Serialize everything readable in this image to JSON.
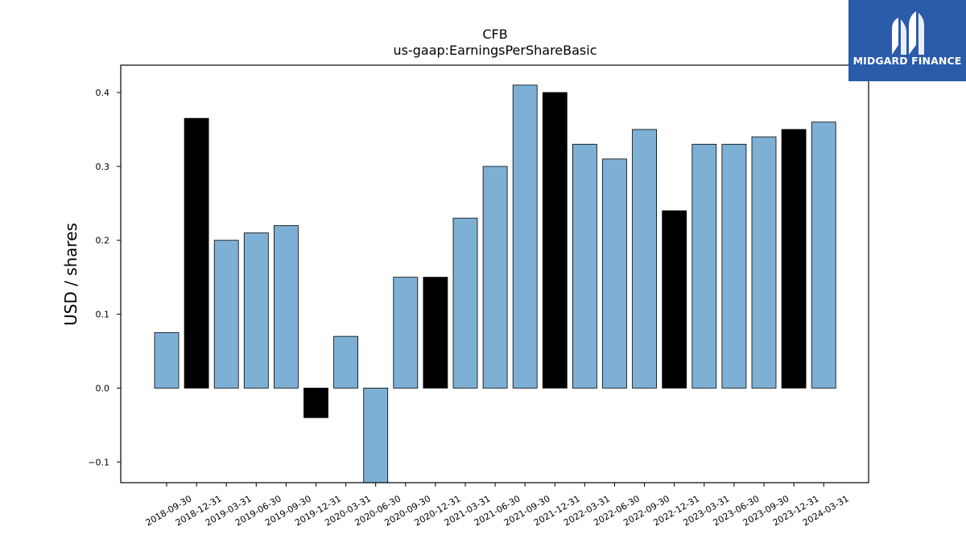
{
  "brand": {
    "logo_text": "MIDGARD FINANCE",
    "color": "#2a5caa"
  },
  "colors": {
    "bar": "#7eb0d5",
    "bar_alt": "#000000",
    "edge": "#000000"
  },
  "chart_data": {
    "type": "bar",
    "title": "CFB",
    "subtitle": "us-gaap:EarningsPerShareBasic",
    "xlabel": "",
    "ylabel": "USD / shares",
    "ylim": [
      -0.128,
      0.437
    ],
    "yticks": [
      -0.1,
      0.0,
      0.1,
      0.2,
      0.3,
      0.4
    ],
    "ytick_labels": [
      "−0.1",
      "0.0",
      "0.1",
      "0.2",
      "0.3",
      "0.4"
    ],
    "grid": false,
    "categories": [
      "2018-09-30",
      "2018-12-31",
      "2019-03-31",
      "2019-06-30",
      "2019-09-30",
      "2019-12-31",
      "2020-03-31",
      "2020-06-30",
      "2020-09-30",
      "2020-12-31",
      "2021-03-31",
      "2021-06-30",
      "2021-09-30",
      "2021-12-31",
      "2022-03-31",
      "2022-06-30",
      "2022-09-30",
      "2022-12-31",
      "2023-03-31",
      "2023-06-30",
      "2023-09-30",
      "2023-12-31",
      "2024-03-31"
    ],
    "values": [
      0.075,
      0.365,
      0.2,
      0.21,
      0.22,
      -0.04,
      0.07,
      -0.13,
      0.15,
      0.15,
      0.23,
      0.3,
      0.41,
      0.4,
      0.33,
      0.31,
      0.35,
      0.24,
      0.33,
      0.33,
      0.34,
      0.35,
      0.36
    ],
    "year_end": [
      false,
      true,
      false,
      false,
      false,
      true,
      false,
      false,
      false,
      true,
      false,
      false,
      false,
      true,
      false,
      false,
      false,
      true,
      false,
      false,
      false,
      true,
      false
    ]
  }
}
